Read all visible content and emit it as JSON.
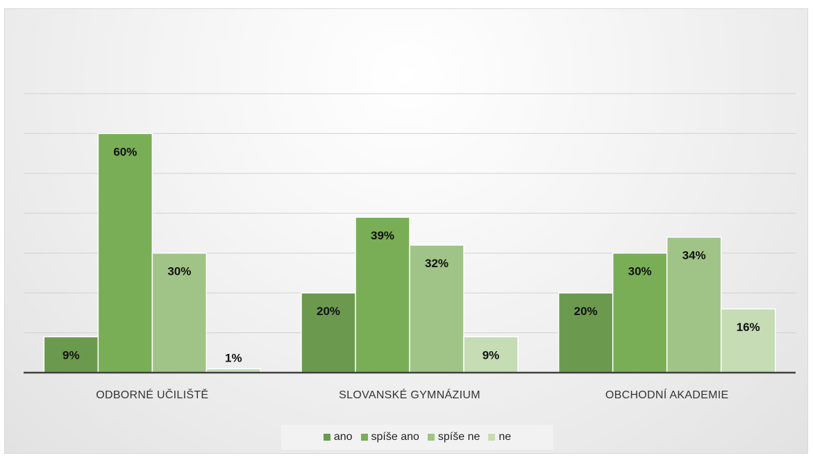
{
  "chart_data": {
    "type": "bar",
    "categories": [
      "ODBORNÉ UČILIŠTĚ",
      "SLOVANSKÉ GYMNÁZIUM",
      "OBCHODNÍ AKADEMIE"
    ],
    "series": [
      {
        "name": "ano",
        "color": "#6b9a4f",
        "values": [
          9,
          20,
          20
        ],
        "labels": [
          "9%",
          "20%",
          "20%"
        ]
      },
      {
        "name": "spíše ano",
        "color": "#79ae56",
        "values": [
          60,
          39,
          30
        ],
        "labels": [
          "60%",
          "39%",
          "30%"
        ]
      },
      {
        "name": "spíše ne",
        "color": "#a0c487",
        "values": [
          30,
          32,
          34
        ],
        "labels": [
          "30%",
          "32%",
          "34%"
        ]
      },
      {
        "name": "ne",
        "color": "#c5dcb4",
        "values": [
          1,
          9,
          16
        ],
        "labels": [
          "1%",
          "9%",
          "16%"
        ]
      }
    ],
    "ylim": [
      0,
      70
    ],
    "grid": true,
    "legend_position": "bottom"
  }
}
